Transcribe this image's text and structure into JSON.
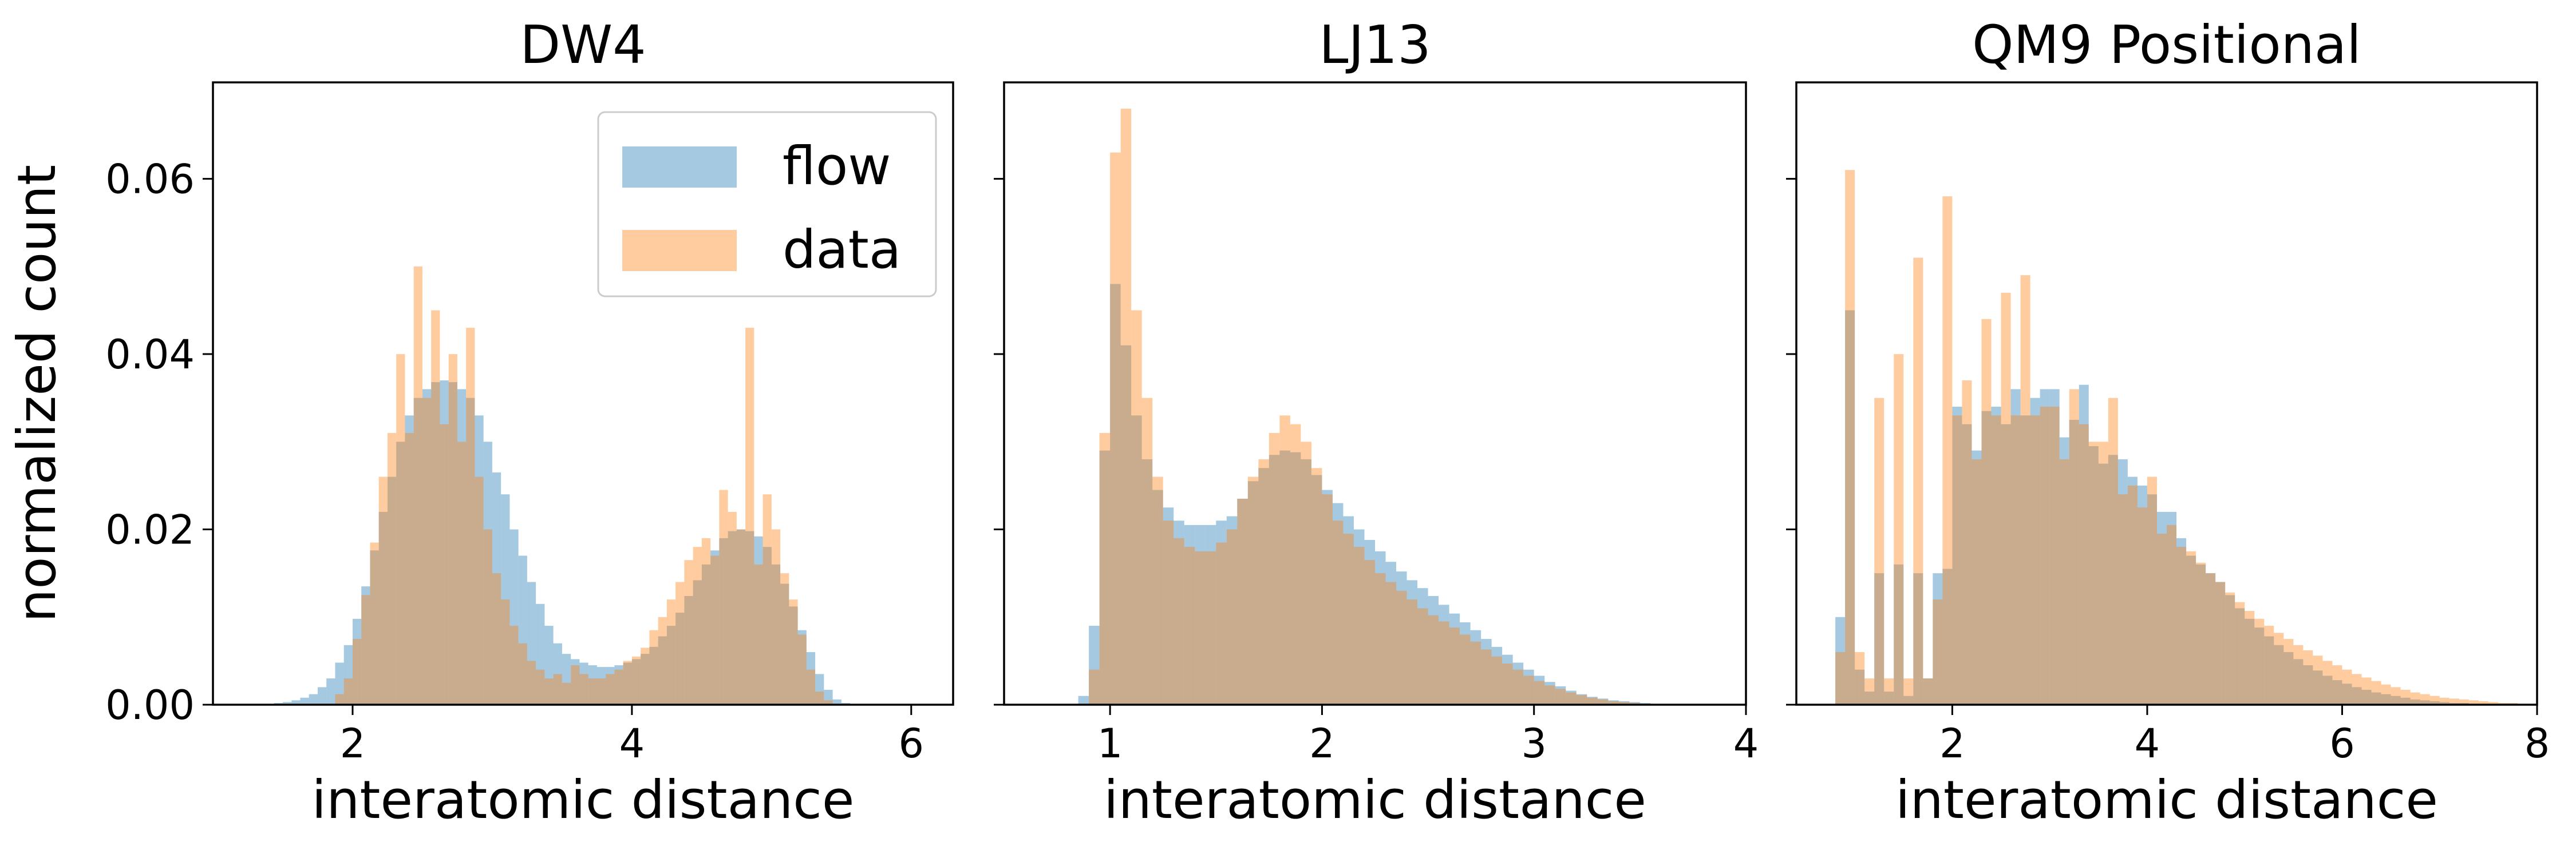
{
  "chart_data": [
    {
      "type": "histogram",
      "title": "DW4",
      "xlabel": "interatomic distance",
      "ylabel": "normalized count",
      "xlim": [
        1.0,
        6.3
      ],
      "ylim": [
        0,
        0.071
      ],
      "xticks": [
        2,
        4,
        6
      ],
      "yticks": [
        0.0,
        0.02,
        0.04,
        0.06
      ],
      "ytick_labels": [
        "0.00",
        "0.02",
        "0.04",
        "0.06"
      ],
      "legend": {
        "position": "upper-right",
        "entries": [
          "flow",
          "data"
        ]
      },
      "bin_start": 1.25,
      "bin_width": 0.0625,
      "series": [
        {
          "name": "flow",
          "color": "#1f77b4",
          "alpha": 0.4,
          "values": [
            0,
            0,
            0.0001,
            0.0002,
            0.0003,
            0.0005,
            0.0008,
            0.0012,
            0.002,
            0.003,
            0.0048,
            0.0068,
            0.0098,
            0.0135,
            0.0176,
            0.022,
            0.026,
            0.03,
            0.033,
            0.035,
            0.036,
            0.0368,
            0.037,
            0.0368,
            0.036,
            0.035,
            0.033,
            0.03,
            0.0265,
            0.024,
            0.02,
            0.017,
            0.014,
            0.0115,
            0.009,
            0.007,
            0.0058,
            0.0052,
            0.0048,
            0.0045,
            0.0043,
            0.0043,
            0.0045,
            0.0048,
            0.0052,
            0.0058,
            0.0066,
            0.0078,
            0.009,
            0.0105,
            0.0124,
            0.0142,
            0.016,
            0.0176,
            0.019,
            0.0198,
            0.02,
            0.0198,
            0.0192,
            0.018,
            0.016,
            0.0138,
            0.0112,
            0.0085,
            0.006,
            0.0035,
            0.0017,
            0.0006,
            0.0002,
            0
          ]
        },
        {
          "name": "data",
          "color": "#ff7f0e",
          "alpha": 0.4,
          "values": [
            0,
            0,
            0,
            0,
            0,
            0,
            0,
            0,
            0,
            0,
            0.0012,
            0.003,
            0.0075,
            0.0125,
            0.0185,
            0.026,
            0.031,
            0.04,
            0.031,
            0.05,
            0.035,
            0.045,
            0.032,
            0.04,
            0.03,
            0.043,
            0.026,
            0.02,
            0.015,
            0.012,
            0.009,
            0.007,
            0.005,
            0.004,
            0.003,
            0.0035,
            0.0025,
            0.0045,
            0.0035,
            0.003,
            0.003,
            0.0035,
            0.004,
            0.005,
            0.0055,
            0.0065,
            0.0085,
            0.01,
            0.012,
            0.014,
            0.0165,
            0.018,
            0.019,
            0.017,
            0.0245,
            0.022,
            0.02,
            0.043,
            0.016,
            0.024,
            0.02,
            0.015,
            0.012,
            0.008,
            0.004,
            0.0015,
            0.0005,
            0,
            0,
            0
          ]
        }
      ]
    },
    {
      "type": "histogram",
      "title": "LJ13",
      "xlabel": "interatomic distance",
      "ylabel": "",
      "xlim": [
        0.5,
        4.0
      ],
      "ylim": [
        0,
        0.071
      ],
      "xticks": [
        1,
        2,
        3,
        4
      ],
      "yticks": [
        0.0,
        0.02,
        0.04,
        0.06
      ],
      "bin_start": 0.75,
      "bin_width": 0.05,
      "series": [
        {
          "name": "flow",
          "color": "#1f77b4",
          "alpha": 0.4,
          "values": [
            0,
            0,
            0.001,
            0.009,
            0.029,
            0.048,
            0.041,
            0.033,
            0.028,
            0.0245,
            0.0225,
            0.021,
            0.0205,
            0.0205,
            0.0205,
            0.021,
            0.0215,
            0.0235,
            0.0255,
            0.027,
            0.0285,
            0.029,
            0.0288,
            0.028,
            0.0262,
            0.0245,
            0.023,
            0.0215,
            0.02,
            0.0188,
            0.0175,
            0.0163,
            0.0152,
            0.0142,
            0.0133,
            0.0124,
            0.0114,
            0.0104,
            0.0094,
            0.0085,
            0.0075,
            0.0066,
            0.0057,
            0.0048,
            0.004,
            0.0033,
            0.0026,
            0.0021,
            0.0016,
            0.0012,
            0.0009,
            0.0007,
            0.0005,
            0.0004,
            0.0003,
            0.0002,
            0.0001,
            0,
            0,
            0,
            0,
            0,
            0,
            0,
            0
          ]
        },
        {
          "name": "data",
          "color": "#ff7f0e",
          "alpha": 0.4,
          "values": [
            0,
            0,
            0,
            0.004,
            0.031,
            0.063,
            0.068,
            0.045,
            0.035,
            0.026,
            0.021,
            0.019,
            0.018,
            0.0175,
            0.0175,
            0.0185,
            0.02,
            0.0235,
            0.026,
            0.028,
            0.031,
            0.033,
            0.032,
            0.03,
            0.027,
            0.024,
            0.021,
            0.0195,
            0.018,
            0.0165,
            0.015,
            0.014,
            0.013,
            0.012,
            0.011,
            0.0102,
            0.0095,
            0.0088,
            0.008,
            0.0072,
            0.0063,
            0.0055,
            0.0047,
            0.004,
            0.0033,
            0.0027,
            0.0022,
            0.0018,
            0.0014,
            0.0011,
            0.0008,
            0.0006,
            0.0004,
            0.0003,
            0.0002,
            0.0001,
            0,
            0,
            0,
            0,
            0,
            0,
            0,
            0,
            0
          ]
        }
      ]
    },
    {
      "type": "histogram",
      "title": "QM9 Positional",
      "xlabel": "interatomic distance",
      "ylabel": "",
      "xlim": [
        0.4,
        8.0
      ],
      "ylim": [
        0,
        0.071
      ],
      "xticks": [
        2,
        4,
        6,
        8
      ],
      "yticks": [
        0.0,
        0.02,
        0.04,
        0.06
      ],
      "bin_start": 0.8,
      "bin_width": 0.1,
      "series": [
        {
          "name": "flow",
          "color": "#1f77b4",
          "alpha": 0.4,
          "values": [
            0.01,
            0.045,
            0.004,
            0.0015,
            0.015,
            0.0015,
            0.016,
            0.001,
            0.015,
            0.003,
            0.015,
            0.0155,
            0.034,
            0.032,
            0.029,
            0.0335,
            0.034,
            0.032,
            0.036,
            0.033,
            0.035,
            0.036,
            0.036,
            0.0305,
            0.0325,
            0.0365,
            0.0295,
            0.0275,
            0.0285,
            0.028,
            0.026,
            0.025,
            0.024,
            0.022,
            0.022,
            0.019,
            0.017,
            0.016,
            0.015,
            0.014,
            0.0125,
            0.011,
            0.0098,
            0.0088,
            0.0078,
            0.0068,
            0.006,
            0.0052,
            0.0045,
            0.0039,
            0.0033,
            0.0028,
            0.0024,
            0.002,
            0.0017,
            0.0014,
            0.0012,
            0.001,
            0.0008,
            0.0006,
            0.0005,
            0.0004,
            0.0003,
            0.0002,
            0.0002,
            0.0001,
            0.0001,
            0.0001,
            0.0001,
            0.0001,
            0.0001,
            0.0001
          ]
        },
        {
          "name": "data",
          "color": "#ff7f0e",
          "alpha": 0.4,
          "values": [
            0.006,
            0.061,
            0.006,
            0.003,
            0.035,
            0.003,
            0.04,
            0.003,
            0.051,
            0.003,
            0.012,
            0.058,
            0.033,
            0.037,
            0.028,
            0.044,
            0.033,
            0.047,
            0.033,
            0.049,
            0.033,
            0.034,
            0.034,
            0.028,
            0.036,
            0.032,
            0.03,
            0.03,
            0.035,
            0.024,
            0.025,
            0.0225,
            0.026,
            0.0195,
            0.0205,
            0.018,
            0.0175,
            0.0162,
            0.015,
            0.014,
            0.0128,
            0.0117,
            0.0107,
            0.0098,
            0.009,
            0.0082,
            0.0075,
            0.0068,
            0.0062,
            0.0056,
            0.005,
            0.0045,
            0.004,
            0.0035,
            0.0031,
            0.0027,
            0.0023,
            0.002,
            0.0017,
            0.0014,
            0.0012,
            0.001,
            0.0008,
            0.0007,
            0.0006,
            0.0005,
            0.0004,
            0.0003,
            0.0002,
            0.0002,
            0.0001,
            0.0001
          ]
        }
      ]
    }
  ]
}
